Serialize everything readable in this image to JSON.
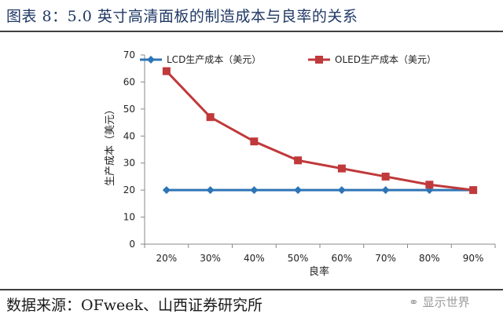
{
  "title": "图表  8：5.0 英寸高清面板的制造成本与良率的关系",
  "source": "数据来源：OFweek、山西证券研究所",
  "watermark": "显示世界",
  "watermark_icon": "wechat-icon",
  "chart_data": {
    "type": "line",
    "categories": [
      "20%",
      "30%",
      "40%",
      "50%",
      "60%",
      "70%",
      "80%",
      "90%"
    ],
    "series": [
      {
        "name": "LCD生产成本（美元）",
        "color": "#2e75b6",
        "marker": "diamond",
        "values": [
          20,
          20,
          20,
          20,
          20,
          20,
          20,
          20
        ]
      },
      {
        "name": "OLED生产成本（美元）",
        "color": "#c0393b",
        "marker": "square",
        "values": [
          64,
          47,
          38,
          31,
          28,
          25,
          22,
          20
        ]
      }
    ],
    "xlabel": "良率",
    "ylabel": "生产成本（美元）",
    "ylim": [
      0,
      70
    ],
    "yticks": [
      0,
      10,
      20,
      30,
      40,
      50,
      60,
      70
    ],
    "grid": false,
    "legend": "top"
  }
}
